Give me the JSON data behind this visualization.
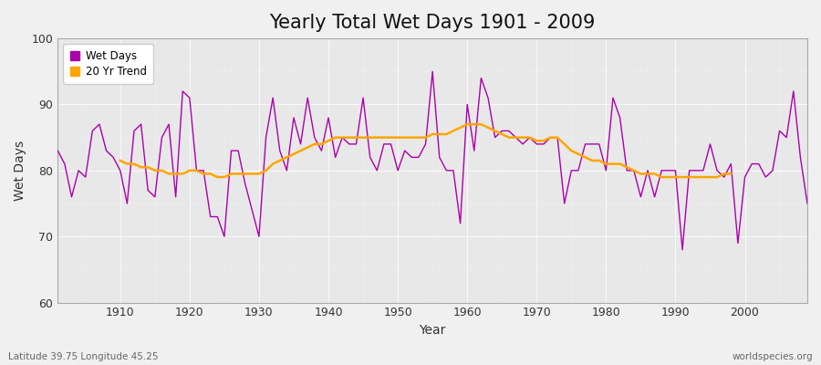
{
  "title": "Yearly Total Wet Days 1901 - 2009",
  "xlabel": "Year",
  "ylabel": "Wet Days",
  "ylim": [
    60,
    100
  ],
  "xlim": [
    1901,
    2009
  ],
  "background_color": "#f0f0f0",
  "plot_bg_color": "#e8e8e8",
  "wet_days_color": "#aa00aa",
  "trend_color": "#ffa500",
  "legend_labels": [
    "Wet Days",
    "20 Yr Trend"
  ],
  "subtitle_left": "Latitude 39.75 Longitude 45.25",
  "subtitle_right": "worldspecies.org",
  "years": [
    1901,
    1902,
    1903,
    1904,
    1905,
    1906,
    1907,
    1908,
    1909,
    1910,
    1911,
    1912,
    1913,
    1914,
    1915,
    1916,
    1917,
    1918,
    1919,
    1920,
    1921,
    1922,
    1923,
    1924,
    1925,
    1926,
    1927,
    1928,
    1929,
    1930,
    1931,
    1932,
    1933,
    1934,
    1935,
    1936,
    1937,
    1938,
    1939,
    1940,
    1941,
    1942,
    1943,
    1944,
    1945,
    1946,
    1947,
    1948,
    1949,
    1950,
    1951,
    1952,
    1953,
    1954,
    1955,
    1956,
    1957,
    1958,
    1959,
    1960,
    1961,
    1962,
    1963,
    1964,
    1965,
    1966,
    1967,
    1968,
    1969,
    1970,
    1971,
    1972,
    1973,
    1974,
    1975,
    1976,
    1977,
    1978,
    1979,
    1980,
    1981,
    1982,
    1983,
    1984,
    1985,
    1986,
    1987,
    1988,
    1989,
    1990,
    1991,
    1992,
    1993,
    1994,
    1995,
    1996,
    1997,
    1998,
    1999,
    2000,
    2001,
    2002,
    2003,
    2004,
    2005,
    2006,
    2007,
    2008,
    2009
  ],
  "wet_days": [
    83,
    81,
    76,
    80,
    79,
    86,
    87,
    83,
    82,
    80,
    75,
    86,
    87,
    77,
    76,
    85,
    87,
    76,
    92,
    91,
    80,
    80,
    73,
    73,
    70,
    83,
    83,
    78,
    74,
    70,
    85,
    91,
    83,
    80,
    88,
    84,
    91,
    85,
    83,
    88,
    82,
    85,
    84,
    84,
    91,
    82,
    80,
    84,
    84,
    80,
    83,
    82,
    82,
    84,
    95,
    82,
    80,
    80,
    72,
    90,
    83,
    94,
    91,
    85,
    86,
    86,
    85,
    84,
    85,
    84,
    84,
    85,
    85,
    75,
    80,
    80,
    84,
    84,
    84,
    80,
    91,
    88,
    80,
    80,
    76,
    80,
    76,
    80,
    80,
    80,
    68,
    80,
    80,
    80,
    84,
    80,
    79,
    81,
    69,
    79,
    81,
    81,
    79,
    80,
    86,
    85,
    92,
    82,
    75
  ],
  "trend": [
    null,
    null,
    null,
    null,
    null,
    null,
    null,
    null,
    null,
    81.5,
    81.0,
    81.0,
    80.5,
    80.5,
    80.0,
    80.0,
    79.5,
    79.5,
    79.5,
    80.0,
    80.0,
    79.5,
    79.5,
    79.0,
    79.0,
    79.5,
    79.5,
    79.5,
    79.5,
    79.5,
    80.0,
    81.0,
    81.5,
    82.0,
    82.5,
    83.0,
    83.5,
    84.0,
    84.0,
    84.5,
    85.0,
    85.0,
    85.0,
    85.0,
    85.0,
    85.0,
    85.0,
    85.0,
    85.0,
    85.0,
    85.0,
    85.0,
    85.0,
    85.0,
    85.5,
    85.5,
    85.5,
    86.0,
    86.5,
    87.0,
    87.0,
    87.0,
    86.5,
    86.0,
    85.5,
    85.0,
    85.0,
    85.0,
    85.0,
    84.5,
    84.5,
    85.0,
    85.0,
    84.0,
    83.0,
    82.5,
    82.0,
    81.5,
    81.5,
    81.0,
    81.0,
    81.0,
    80.5,
    80.0,
    79.5,
    79.5,
    79.5,
    79.0,
    79.0,
    79.0,
    79.0,
    79.0,
    79.0,
    79.0,
    79.0,
    79.0,
    79.5,
    79.5,
    null,
    null,
    null,
    null,
    null,
    null,
    null,
    null,
    null,
    null,
    null
  ]
}
